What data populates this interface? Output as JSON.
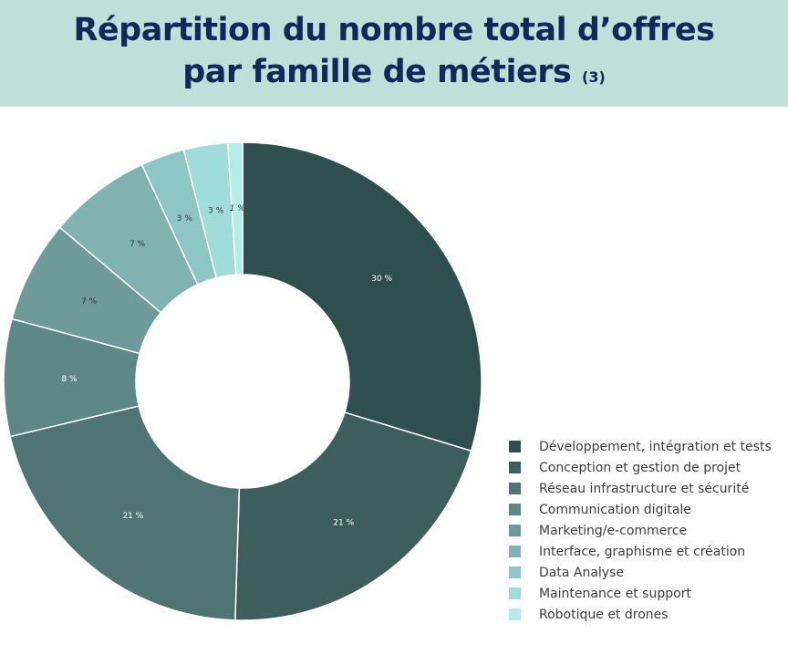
{
  "header": {
    "title_line1": "Répartition du nombre total d’offres",
    "title_line2": "par famille de métiers",
    "title_note": "(3)"
  },
  "chart_data": {
    "type": "pie",
    "style": "donut",
    "title": "Répartition du nombre total d’offres par famille de métiers (3)",
    "legend_position": "right-bottom",
    "slices": [
      {
        "label": "Développement, intégration et tests",
        "value": 30,
        "value_label": "30 %",
        "color": "#2f4f4e"
      },
      {
        "label": "Conception et gestion de projet",
        "value": 21,
        "value_label": "21 %",
        "color": "#3e5e5d"
      },
      {
        "label": "Réseau infrastructure et sécurité",
        "value": 21,
        "value_label": "21 %",
        "color": "#4f7473"
      },
      {
        "label": "Communication digitale",
        "value": 8,
        "value_label": "8 %",
        "color": "#5e8886"
      },
      {
        "label": "Marketing/e-commerce",
        "value": 7,
        "value_label": "7 %",
        "color": "#6e9b99"
      },
      {
        "label": "Interface, graphisme et création",
        "value": 7,
        "value_label": "7 %",
        "color": "#80b2b0"
      },
      {
        "label": "Data Analyse",
        "value": 3,
        "value_label": "3 %",
        "color": "#8dc6c4"
      },
      {
        "label": "Maintenance et support",
        "value": 3,
        "value_label": "3 %",
        "color": "#9fdcda"
      },
      {
        "label": "Robotique et drones",
        "value": 1,
        "value_label": "1 %",
        "color": "#b4ecea"
      }
    ]
  }
}
